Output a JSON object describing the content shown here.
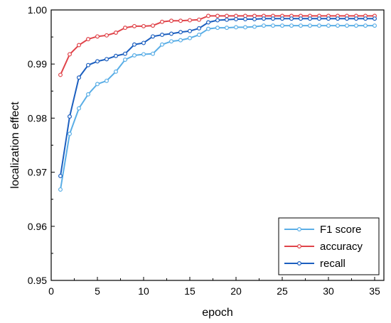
{
  "chart_data": {
    "type": "line",
    "title": "",
    "xlabel": "epoch",
    "ylabel": "localization effect",
    "xlim": [
      0,
      36
    ],
    "ylim": [
      0.95,
      1.0
    ],
    "x_ticks": [
      0,
      5,
      10,
      15,
      20,
      25,
      30,
      35
    ],
    "y_ticks": [
      0.95,
      0.96,
      0.97,
      0.98,
      0.99,
      1.0
    ],
    "x_tick_labels": [
      "0",
      "5",
      "10",
      "15",
      "20",
      "25",
      "30",
      "35"
    ],
    "y_tick_labels": [
      "0.95",
      "0.96",
      "0.97",
      "0.98",
      "0.99",
      "1.00"
    ],
    "grid": false,
    "legend_position": "bottom-right",
    "x": [
      1,
      2,
      3,
      4,
      5,
      6,
      7,
      8,
      9,
      10,
      11,
      12,
      13,
      14,
      15,
      16,
      17,
      18,
      19,
      20,
      21,
      22,
      23,
      24,
      25,
      26,
      27,
      28,
      29,
      30,
      31,
      32,
      33,
      34,
      35
    ],
    "series": [
      {
        "name": "F1 score",
        "color": "#5aaee6",
        "values": [
          0.9668,
          0.9771,
          0.9818,
          0.9844,
          0.9863,
          0.9869,
          0.9886,
          0.9908,
          0.9916,
          0.9918,
          0.9919,
          0.9936,
          0.9942,
          0.9944,
          0.9948,
          0.9954,
          0.9965,
          0.9967,
          0.9967,
          0.9968,
          0.9968,
          0.9969,
          0.9971,
          0.9971,
          0.9971,
          0.9971,
          0.9971,
          0.9971,
          0.9971,
          0.9971,
          0.9971,
          0.9971,
          0.9971,
          0.9971,
          0.9971
        ]
      },
      {
        "name": "accuracy",
        "color": "#e0444a",
        "values": [
          0.988,
          0.9918,
          0.9935,
          0.9946,
          0.9951,
          0.9953,
          0.9958,
          0.9967,
          0.997,
          0.997,
          0.9971,
          0.9978,
          0.998,
          0.998,
          0.9981,
          0.9982,
          0.9989,
          0.9989,
          0.9989,
          0.9989,
          0.9989,
          0.9989,
          0.9989,
          0.9989,
          0.9989,
          0.9989,
          0.9989,
          0.9989,
          0.9989,
          0.9989,
          0.9989,
          0.9989,
          0.9989,
          0.9989,
          0.9989
        ]
      },
      {
        "name": "recall",
        "color": "#1c5fbf",
        "values": [
          0.9693,
          0.9803,
          0.9875,
          0.9898,
          0.9905,
          0.9909,
          0.9915,
          0.9919,
          0.9936,
          0.9939,
          0.9951,
          0.9954,
          0.9956,
          0.9959,
          0.9961,
          0.9966,
          0.9977,
          0.9981,
          0.9982,
          0.9983,
          0.9983,
          0.9983,
          0.9984,
          0.9984,
          0.9984,
          0.9984,
          0.9984,
          0.9984,
          0.9984,
          0.9984,
          0.9984,
          0.9984,
          0.9984,
          0.9984,
          0.9984
        ]
      }
    ]
  }
}
